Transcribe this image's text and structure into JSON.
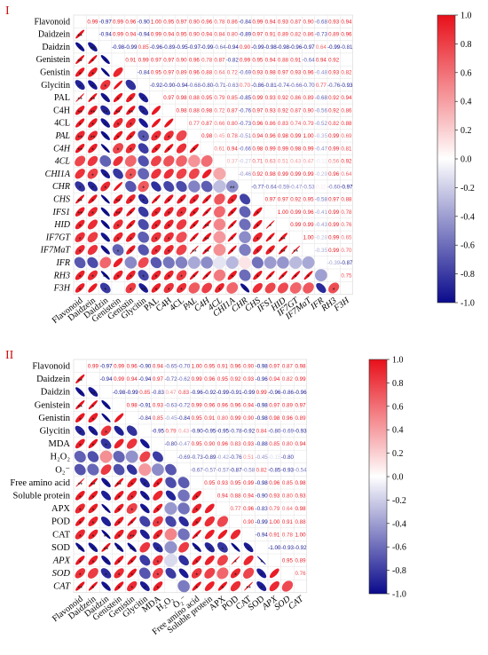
{
  "chart_data": [
    {
      "type": "heatmap",
      "panel_label": "I",
      "variables": [
        {
          "label": "Flavonoid",
          "italic": false
        },
        {
          "label": "Daidzein",
          "italic": false
        },
        {
          "label": "Daidzin",
          "italic": false
        },
        {
          "label": "Genistein",
          "italic": false
        },
        {
          "label": "Genistin",
          "italic": false
        },
        {
          "label": "Glycitin",
          "italic": false
        },
        {
          "label": "PAL",
          "italic": false
        },
        {
          "label": "C4H",
          "italic": false
        },
        {
          "label": "4CL",
          "italic": false
        },
        {
          "label": "PAL",
          "italic": true
        },
        {
          "label": "C4H",
          "italic": true
        },
        {
          "label": "4CL",
          "italic": true
        },
        {
          "label": "CHI1A",
          "italic": true
        },
        {
          "label": "CHR",
          "italic": true
        },
        {
          "label": "CHS",
          "italic": true
        },
        {
          "label": "IFS1",
          "italic": true
        },
        {
          "label": "HID",
          "italic": true
        },
        {
          "label": "IF7GT",
          "italic": true
        },
        {
          "label": "IF7MaT",
          "italic": true
        },
        {
          "label": "IFR",
          "italic": true
        },
        {
          "label": "RH3",
          "italic": true
        },
        {
          "label": "F3H",
          "italic": true
        }
      ],
      "upper_values": [
        [
          0.99,
          -0.97,
          0.99,
          0.96,
          -0.9,
          1.0,
          0.95,
          0.97,
          0.9,
          0.96,
          0.78,
          0.86,
          -0.84,
          0.99,
          0.94,
          0.93,
          0.87,
          0.9,
          -0.68,
          0.93,
          0.94
        ],
        [
          -0.94,
          0.99,
          0.94,
          -0.94,
          0.99,
          0.94,
          0.95,
          0.9,
          0.94,
          0.84,
          0.8,
          -0.89,
          0.97,
          0.91,
          0.89,
          0.82,
          0.86,
          -0.73,
          0.89,
          0.96
        ],
        [
          -0.98,
          -0.99,
          0.85,
          -0.96,
          -0.89,
          -0.95,
          -0.97,
          -0.99,
          -0.64,
          -0.94,
          0.9,
          -0.99,
          -0.98,
          -0.98,
          -0.96,
          -0.97,
          0.64,
          -0.99,
          -0.81
        ],
        [
          0.91,
          0.99,
          0.97,
          0.97,
          0.9,
          0.96,
          0.78,
          0.87,
          -0.82,
          0.99,
          0.95,
          0.94,
          0.88,
          0.91,
          -0.64,
          0.94,
          0.92
        ],
        [
          -0.84,
          0.95,
          0.97,
          0.89,
          0.96,
          0.88,
          0.64,
          0.72,
          -0.69,
          0.93,
          0.98,
          0.97,
          0.93,
          0.96,
          -0.48,
          0.93,
          0.82
        ],
        [
          -0.92,
          -0.9,
          -0.94,
          -0.68,
          -0.8,
          -0.71,
          -0.63,
          0.7,
          -0.86,
          -0.81,
          -0.74,
          -0.66,
          -0.7,
          0.77,
          -0.76,
          -0.93
        ],
        [
          0.97,
          0.98,
          0.88,
          0.95,
          0.79,
          0.85,
          -0.85,
          0.99,
          0.93,
          0.92,
          0.86,
          0.89,
          -0.68,
          0.92,
          0.94
        ],
        [
          0.98,
          0.88,
          0.98,
          0.72,
          0.87,
          -0.76,
          0.97,
          0.93,
          0.92,
          0.87,
          0.9,
          -0.56,
          0.92,
          0.86
        ],
        [
          0.77,
          0.87,
          0.66,
          0.8,
          -0.73,
          0.96,
          0.86,
          0.83,
          0.74,
          0.79,
          -0.52,
          0.82,
          0.88
        ],
        [
          0.98,
          0.45,
          0.78,
          -0.51,
          0.94,
          0.96,
          0.98,
          0.99,
          1.0,
          -0.35,
          0.99,
          0.69
        ],
        [
          0.61,
          0.94,
          -0.66,
          0.98,
          0.99,
          0.99,
          0.98,
          0.99,
          -0.47,
          0.99,
          0.81
        ],
        [
          0.37,
          -0.27,
          0.71,
          0.63,
          0.51,
          0.43,
          0.47,
          -0.11,
          0.56,
          0.92
        ],
        [
          -0.46,
          0.92,
          0.98,
          0.99,
          0.99,
          0.99,
          -0.29,
          0.96,
          0.64
        ],
        [
          -0.77,
          -0.64,
          -0.59,
          -0.47,
          -0.53,
          0.11,
          -0.6,
          -0.97
        ],
        [
          0.97,
          0.97,
          0.92,
          0.95,
          -0.58,
          0.97,
          0.88
        ],
        [
          1.0,
          0.99,
          0.96,
          -0.41,
          0.99,
          0.78
        ],
        [
          0.99,
          0.99,
          -0.43,
          0.99,
          0.76
        ],
        [
          1.0,
          -0.28,
          0.99,
          0.65
        ],
        [
          -0.35,
          0.99,
          0.7
        ],
        [
          -0.39,
          -0.87
        ],
        [
          0.75
        ],
        []
      ],
      "lower_stars": [
        [],
        [
          "**"
        ],
        [
          "*",
          "**"
        ],
        [
          "**",
          "*",
          "*"
        ],
        [
          "*",
          "*",
          "*",
          ""
        ],
        [
          "*",
          "*",
          "*",
          "",
          ""
        ],
        [
          "**",
          "**",
          "*",
          "*",
          "*",
          "*"
        ],
        [
          "**",
          "**",
          "**",
          "**",
          "**",
          "*",
          ""
        ],
        [
          "*",
          "*",
          "*",
          "*",
          "*",
          "",
          "",
          ""
        ],
        [
          "**",
          "**",
          "*",
          "*",
          "*",
          "*",
          "*",
          "*",
          ""
        ],
        [
          "**",
          "*",
          "*",
          "*",
          "*",
          "",
          "*",
          "*",
          "",
          "*"
        ],
        [
          "",
          "",
          "",
          "",
          "",
          "",
          "",
          "",
          "",
          "",
          ""
        ],
        [
          "",
          "*",
          "*",
          "",
          "*",
          "",
          "",
          "",
          "",
          "",
          "",
          ""
        ],
        [
          "*",
          "*",
          "*",
          "",
          "",
          "*",
          "",
          "",
          "",
          "",
          "",
          "",
          "**"
        ],
        [
          "**",
          "*",
          "*",
          "**",
          "*",
          "*",
          "*",
          "*",
          "*",
          "*",
          "*",
          "",
          "*",
          ""
        ],
        [
          "**",
          "*",
          "*",
          "**",
          "*",
          "",
          "*",
          "*",
          "*",
          "*",
          "*",
          "",
          "*",
          "",
          "*"
        ],
        [
          "*",
          "",
          "*",
          "*",
          "*",
          "",
          "*",
          "*",
          "",
          "*",
          "**",
          "",
          "*",
          "",
          "*",
          "*"
        ],
        [
          "*",
          "",
          "*",
          "*",
          "*",
          "",
          "*",
          "*",
          "",
          "*",
          "**",
          "",
          "*",
          "",
          "*",
          "*",
          "**"
        ],
        [
          "*",
          "",
          "*",
          "*",
          "*",
          "",
          "*",
          "*",
          "",
          "**",
          "**",
          "",
          "*",
          "",
          "*",
          "*",
          "**",
          "**"
        ],
        [
          "",
          "",
          "",
          "",
          "",
          "",
          "",
          "",
          "",
          "",
          "",
          "",
          "",
          "",
          "",
          "",
          "",
          "",
          ""
        ],
        [
          "*",
          "*",
          "**",
          "*",
          "*",
          "*",
          "*",
          "*",
          "*",
          "*",
          "*",
          "",
          "*",
          "",
          "*",
          "*",
          "*",
          "*",
          "*",
          ""
        ],
        [
          "*",
          "",
          "*",
          "*",
          "*",
          "**",
          "*",
          "*",
          "*",
          "",
          "",
          "*",
          "",
          "*",
          "",
          "",
          "",
          "",
          "",
          "",
          "*"
        ]
      ],
      "colorbar": {
        "min": -1.0,
        "max": 1.0,
        "ticks": [
          "1.0",
          "0.8",
          "0.6",
          "0.4",
          "0.2",
          "0.0",
          "-0.2",
          "-0.4",
          "-0.6",
          "-0.8",
          "-1.0"
        ],
        "colors": [
          "#0a0a8c",
          "#ffffff",
          "#e8101a"
        ]
      }
    },
    {
      "type": "heatmap",
      "panel_label": "II",
      "variables": [
        {
          "label": "Flavonoid",
          "italic": false
        },
        {
          "label": "Daidzein",
          "italic": false
        },
        {
          "label": "Daidzin",
          "italic": false
        },
        {
          "label": "Genistein",
          "italic": false
        },
        {
          "label": "Genistin",
          "italic": false
        },
        {
          "label": "Glycitin",
          "italic": false
        },
        {
          "label": "MDA",
          "italic": false
        },
        {
          "label": "H₂O₂",
          "italic": false
        },
        {
          "label": "O₂⁻",
          "italic": false
        },
        {
          "label": "Free amino acid",
          "italic": false
        },
        {
          "label": "Soluble protein",
          "italic": false
        },
        {
          "label": "APX",
          "italic": false
        },
        {
          "label": "POD",
          "italic": false
        },
        {
          "label": "CAT",
          "italic": false
        },
        {
          "label": "SOD",
          "italic": false
        },
        {
          "label": "APX",
          "italic": true
        },
        {
          "label": "SOD",
          "italic": true
        },
        {
          "label": "CAT",
          "italic": true
        }
      ],
      "upper_values": [
        [
          0.99,
          -0.97,
          0.99,
          0.96,
          -0.9,
          0.94,
          -0.65,
          -0.7,
          1.0,
          0.95,
          0.91,
          0.96,
          0.9,
          -0.98,
          0.97,
          0.87,
          0.98
        ],
        [
          -0.94,
          0.99,
          0.94,
          -0.94,
          0.97,
          -0.72,
          -0.62,
          0.99,
          0.96,
          0.95,
          0.92,
          0.93,
          -0.96,
          0.94,
          0.82,
          0.99
        ],
        [
          -0.98,
          -0.99,
          0.85,
          -0.83,
          0.47,
          0.83,
          -0.96,
          -0.92,
          -0.99,
          -0.91,
          -0.99,
          0.99,
          -0.96,
          -0.86,
          -0.96
        ],
        [
          0.98,
          -0.91,
          0.93,
          -0.63,
          -0.72,
          0.99,
          0.96,
          0.96,
          0.96,
          0.94,
          -0.98,
          0.97,
          0.89,
          0.97
        ],
        [
          -0.84,
          0.85,
          -0.45,
          -0.84,
          0.95,
          0.91,
          0.8,
          0.99,
          0.9,
          -0.98,
          0.98,
          0.96,
          0.89
        ],
        [
          -0.95,
          0.79,
          0.43,
          -0.9,
          -0.95,
          -0.95,
          -0.78,
          -0.92,
          0.84,
          -0.8,
          -0.69,
          -0.93
        ],
        [
          -0.8,
          -0.47,
          0.95,
          0.9,
          0.96,
          0.83,
          0.93,
          -0.88,
          0.85,
          0.8,
          0.94
        ],
        [
          -0.69,
          -0.73,
          -0.89,
          -0.42,
          -0.76,
          0.51,
          -0.45,
          -0.15,
          -0.8
        ],
        [
          -0.67,
          -0.57,
          -0.57,
          -0.87,
          -0.58,
          0.82,
          -0.85,
          -0.93,
          -0.54
        ],
        [
          0.95,
          0.93,
          0.95,
          0.99,
          -0.98,
          0.96,
          0.85,
          0.98
        ],
        [
          0.94,
          0.88,
          0.94,
          -0.9,
          0.93,
          0.8,
          0.93
        ],
        [
          0.77,
          0.96,
          -0.83,
          0.79,
          0.64,
          0.98
        ],
        [
          0.9,
          -0.99,
          1.0,
          0.91,
          0.88
        ],
        [
          -0.94,
          0.91,
          0.78,
          1.0
        ],
        [
          -1.0,
          -0.93,
          -0.92
        ],
        [
          0.95,
          0.89
        ],
        [
          0.76
        ],
        []
      ],
      "lower_stars": [
        [],
        [
          "**"
        ],
        [
          "*",
          "**"
        ],
        [
          "**",
          "*",
          "*"
        ],
        [
          "*",
          "*",
          "*",
          ""
        ],
        [
          "*",
          "*",
          "*",
          "",
          ""
        ],
        [
          "*",
          "*",
          "*",
          "",
          "",
          ""
        ],
        [
          "",
          "",
          "",
          "",
          "",
          "",
          ""
        ],
        [
          "",
          "",
          "",
          "",
          "",
          "",
          "",
          ""
        ],
        [
          "**",
          "**",
          "*",
          "**",
          "*",
          "*",
          "*",
          "",
          ""
        ],
        [
          "*",
          "*",
          "",
          "*",
          "*",
          "*",
          "",
          "",
          "",
          "*"
        ],
        [
          "*",
          "*",
          "*",
          "*",
          "*",
          "*",
          "*",
          "",
          "",
          "*",
          ""
        ],
        [
          "*",
          "*",
          "",
          "*",
          "*",
          "",
          "*",
          "",
          "",
          "*",
          "",
          ""
        ],
        [
          "*",
          "*",
          "**",
          "*",
          "**",
          "",
          "*",
          "",
          "",
          "*",
          "",
          "",
          ""
        ],
        [
          "**",
          "*",
          "**",
          "**",
          "**",
          "",
          "*",
          "",
          "",
          "**",
          "*",
          "*",
          "*",
          "*"
        ],
        [
          "*",
          "*",
          "*",
          "*",
          "*",
          "",
          "*",
          "",
          "",
          "*",
          "",
          "",
          "*",
          "",
          "*"
        ],
        [
          "*",
          "",
          "*",
          "*",
          "*",
          "",
          "*",
          "",
          "",
          "*",
          "",
          "",
          "*",
          "",
          "*",
          ""
        ],
        [
          "**",
          "*",
          "*",
          "*",
          "*",
          "*",
          "*",
          "",
          "",
          "*",
          "",
          "*",
          "",
          "**",
          "*",
          "",
          ""
        ]
      ],
      "colorbar": {
        "min": -1.0,
        "max": 1.0,
        "ticks": [
          "1.0",
          "0.8",
          "0.6",
          "0.4",
          "0.2",
          "0.0",
          "-0.2",
          "-0.4",
          "-0.6",
          "-0.8",
          "-1.0"
        ],
        "colors": [
          "#0a0a8c",
          "#ffffff",
          "#e8101a"
        ]
      }
    }
  ]
}
